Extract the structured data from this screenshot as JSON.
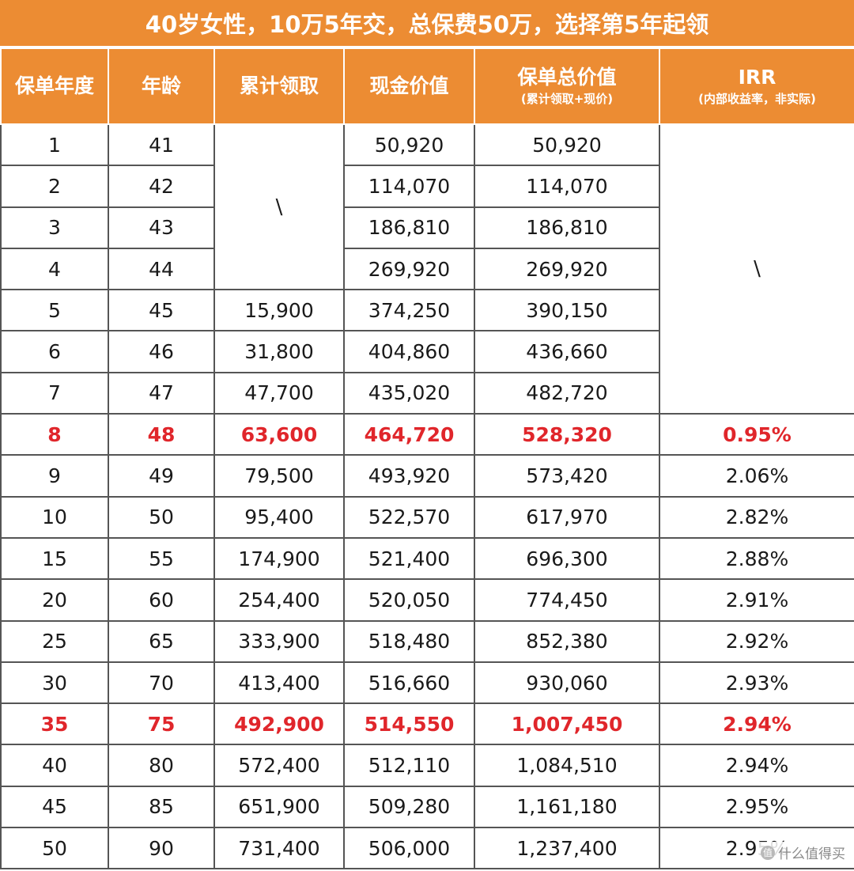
{
  "title": "40岁女性，10万5年交，总保费50万，选择第5年起领",
  "headers": [
    {
      "main": "保单年度",
      "sub": ""
    },
    {
      "main": "年龄",
      "sub": ""
    },
    {
      "main": "累计领取",
      "sub": ""
    },
    {
      "main": "现金价值",
      "sub": ""
    },
    {
      "main": "保单总价值",
      "sub": "(累计领取+现价)"
    },
    {
      "main": "IRR",
      "sub": "(内部收益率，非实际)"
    }
  ],
  "merged": {
    "cumulative_years_1_4": "\\",
    "irr_years_1_7": "\\"
  },
  "rows": [
    {
      "year": "1",
      "age": "41",
      "cumulative": "",
      "cash_value": "50,920",
      "total_value": "50,920",
      "irr": "",
      "highlight": false
    },
    {
      "year": "2",
      "age": "42",
      "cumulative": "",
      "cash_value": "114,070",
      "total_value": "114,070",
      "irr": "",
      "highlight": false
    },
    {
      "year": "3",
      "age": "43",
      "cumulative": "",
      "cash_value": "186,810",
      "total_value": "186,810",
      "irr": "",
      "highlight": false
    },
    {
      "year": "4",
      "age": "44",
      "cumulative": "",
      "cash_value": "269,920",
      "total_value": "269,920",
      "irr": "",
      "highlight": false
    },
    {
      "year": "5",
      "age": "45",
      "cumulative": "15,900",
      "cash_value": "374,250",
      "total_value": "390,150",
      "irr": "",
      "highlight": false
    },
    {
      "year": "6",
      "age": "46",
      "cumulative": "31,800",
      "cash_value": "404,860",
      "total_value": "436,660",
      "irr": "",
      "highlight": false
    },
    {
      "year": "7",
      "age": "47",
      "cumulative": "47,700",
      "cash_value": "435,020",
      "total_value": "482,720",
      "irr": "",
      "highlight": false
    },
    {
      "year": "8",
      "age": "48",
      "cumulative": "63,600",
      "cash_value": "464,720",
      "total_value": "528,320",
      "irr": "0.95%",
      "highlight": true
    },
    {
      "year": "9",
      "age": "49",
      "cumulative": "79,500",
      "cash_value": "493,920",
      "total_value": "573,420",
      "irr": "2.06%",
      "highlight": false
    },
    {
      "year": "10",
      "age": "50",
      "cumulative": "95,400",
      "cash_value": "522,570",
      "total_value": "617,970",
      "irr": "2.82%",
      "highlight": false
    },
    {
      "year": "15",
      "age": "55",
      "cumulative": "174,900",
      "cash_value": "521,400",
      "total_value": "696,300",
      "irr": "2.88%",
      "highlight": false
    },
    {
      "year": "20",
      "age": "60",
      "cumulative": "254,400",
      "cash_value": "520,050",
      "total_value": "774,450",
      "irr": "2.91%",
      "highlight": false
    },
    {
      "year": "25",
      "age": "65",
      "cumulative": "333,900",
      "cash_value": "518,480",
      "total_value": "852,380",
      "irr": "2.92%",
      "highlight": false
    },
    {
      "year": "30",
      "age": "70",
      "cumulative": "413,400",
      "cash_value": "516,660",
      "total_value": "930,060",
      "irr": "2.93%",
      "highlight": false
    },
    {
      "year": "35",
      "age": "75",
      "cumulative": "492,900",
      "cash_value": "514,550",
      "total_value": "1,007,450",
      "irr": "2.94%",
      "highlight": true
    },
    {
      "year": "40",
      "age": "80",
      "cumulative": "572,400",
      "cash_value": "512,110",
      "total_value": "1,084,510",
      "irr": "2.94%",
      "highlight": false
    },
    {
      "year": "45",
      "age": "85",
      "cumulative": "651,900",
      "cash_value": "509,280",
      "total_value": "1,161,180",
      "irr": "2.95%",
      "highlight": false
    },
    {
      "year": "50",
      "age": "90",
      "cumulative": "731,400",
      "cash_value": "506,000",
      "total_value": "1,237,400",
      "irr": "2.95%",
      "highlight": false
    }
  ],
  "watermark": {
    "logo": "值",
    "text": "什么值得买"
  },
  "colors": {
    "header_bg": "#ec8c33",
    "header_text": "#ffffff",
    "highlight_text": "#e0262b",
    "border": "#555555"
  }
}
